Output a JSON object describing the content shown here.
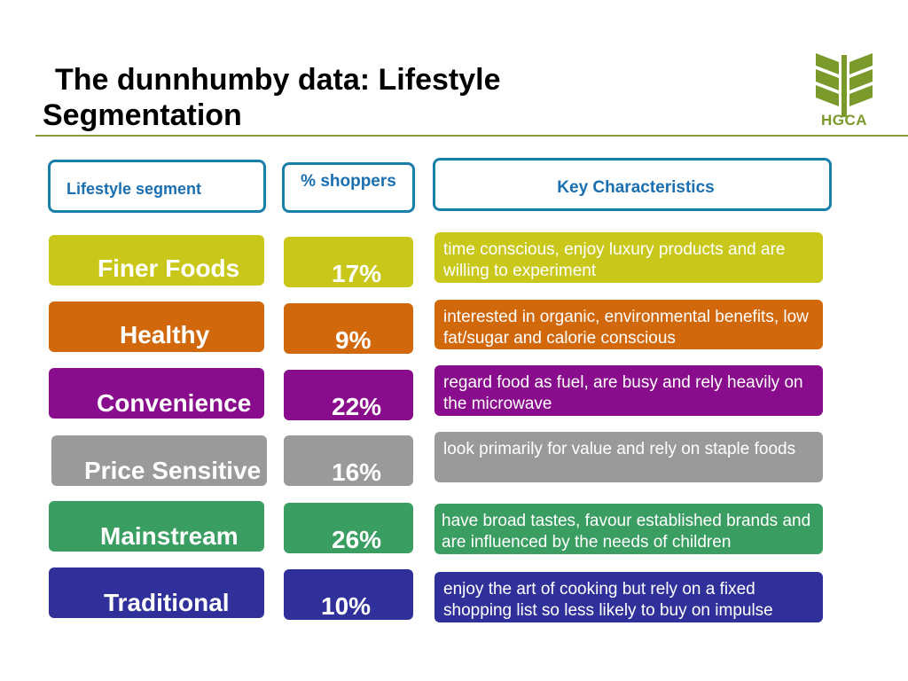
{
  "title": {
    "line1": "The dunnhumby data: Lifestyle",
    "line2": "Segmentation"
  },
  "logo": {
    "text": "HGCA",
    "color": "#7a9a2c"
  },
  "headers": {
    "segment": "Lifestyle segment",
    "shoppers": "% shoppers",
    "characteristics": "Key Characteristics"
  },
  "segments": [
    {
      "name": "Finer Foods",
      "percent": "17%",
      "description": "time conscious, enjoy luxury products and are willing to experiment",
      "color": "#c9c81a"
    },
    {
      "name": "Healthy",
      "percent": "9%",
      "description": "interested in organic, environmental benefits, low fat/sugar and calorie conscious",
      "color": "#d2680c"
    },
    {
      "name": "Convenience",
      "percent": "22%",
      "description": "regard food as fuel, are busy and rely heavily on the microwave",
      "color": "#880c8c"
    },
    {
      "name": "Price Sensitive",
      "percent": "16%",
      "description": "look primarily for value and rely on staple foods",
      "color": "#9a9a9a"
    },
    {
      "name": "Mainstream",
      "percent": "26%",
      "description": "have broad tastes, favour established brands and are influenced by the needs of children",
      "color": "#3a9e62"
    },
    {
      "name": "Traditional",
      "percent": "10%",
      "description": "enjoy the art of cooking but rely on a fixed shopping list so less likely to buy on impulse",
      "color": "#30309a"
    }
  ]
}
